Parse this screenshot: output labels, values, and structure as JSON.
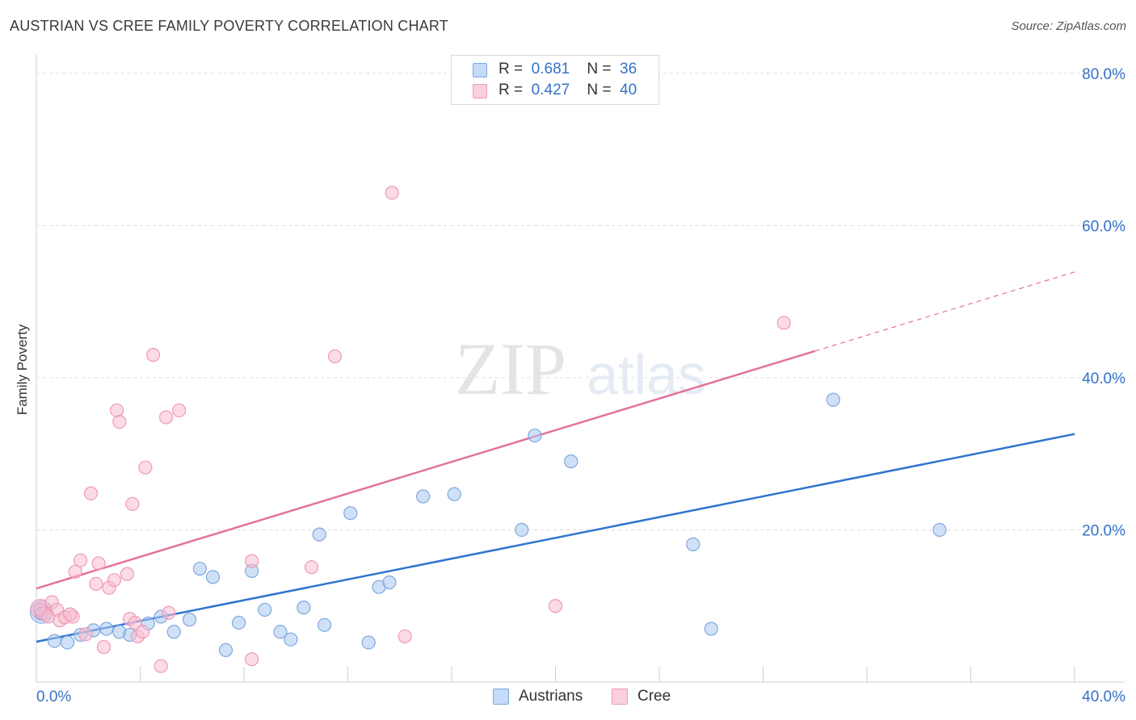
{
  "title": "AUSTRIAN VS CREE FAMILY POVERTY CORRELATION CHART",
  "source": "Source: ZipAtlas.com",
  "watermark": {
    "zip": "ZIP",
    "atlas": "atlas"
  },
  "legend": {
    "items": [
      {
        "r_label": "R =",
        "r_value": "0.681",
        "n_label": "N =",
        "n_value": "36"
      },
      {
        "r_label": "R =",
        "r_value": "0.427",
        "n_label": "N =",
        "n_value": "40"
      }
    ]
  },
  "bottom_legend": {
    "austrians": "Austrians",
    "cree": "Cree"
  },
  "colors": {
    "austrians_fill": "#a9c8f0",
    "austrians_stroke": "#7ea7de",
    "austrians_line": "#2f74d0",
    "cree_fill": "#f8bdd0",
    "cree_stroke": "#ee9ab6",
    "cree_line": "#e4729a",
    "axis_text": "#3472c8",
    "grid": "#dddddd"
  },
  "chart_data": {
    "type": "scatter",
    "title": "AUSTRIAN VS CREE FAMILY POVERTY CORRELATION CHART",
    "xlabel": "",
    "ylabel": "Family Poverty",
    "xlim": [
      0,
      40
    ],
    "ylim": [
      0,
      82
    ],
    "x_tick_labels": [
      "0.0%",
      "40.0%"
    ],
    "y_ticks": [
      20,
      40,
      60,
      80
    ],
    "y_tick_labels": [
      "20.0%",
      "40.0%",
      "60.0%",
      "80.0%"
    ],
    "grid": true,
    "legend_position": "top-center",
    "series": [
      {
        "name": "Austrians",
        "r": 0.681,
        "n": 36,
        "points": [
          [
            0.2,
            9.0
          ],
          [
            0.7,
            5.4
          ],
          [
            1.2,
            5.2
          ],
          [
            1.7,
            6.2
          ],
          [
            2.2,
            6.8
          ],
          [
            2.7,
            7.0
          ],
          [
            3.2,
            6.6
          ],
          [
            3.6,
            6.2
          ],
          [
            4.3,
            7.7
          ],
          [
            4.8,
            8.6
          ],
          [
            5.3,
            6.6
          ],
          [
            5.9,
            8.2
          ],
          [
            6.3,
            14.9
          ],
          [
            6.8,
            13.8
          ],
          [
            7.3,
            4.2
          ],
          [
            7.8,
            7.8
          ],
          [
            8.3,
            14.6
          ],
          [
            8.8,
            9.5
          ],
          [
            9.4,
            6.6
          ],
          [
            9.8,
            5.6
          ],
          [
            10.3,
            9.8
          ],
          [
            11.1,
            7.5
          ],
          [
            10.9,
            19.4
          ],
          [
            12.1,
            22.2
          ],
          [
            12.8,
            5.2
          ],
          [
            13.2,
            12.5
          ],
          [
            13.6,
            13.1
          ],
          [
            14.9,
            24.4
          ],
          [
            16.1,
            24.7
          ],
          [
            18.7,
            20.0
          ],
          [
            19.2,
            32.4
          ],
          [
            20.6,
            29.0
          ],
          [
            25.3,
            18.1
          ],
          [
            26.0,
            7.0
          ],
          [
            30.7,
            37.1
          ],
          [
            34.8,
            20.0
          ]
        ],
        "trend": {
          "x": [
            0,
            40
          ],
          "y": [
            5.3,
            32.6
          ]
        }
      },
      {
        "name": "Cree",
        "r": 0.427,
        "n": 40,
        "points": [
          [
            0.3,
            9.0
          ],
          [
            0.6,
            10.5
          ],
          [
            0.8,
            9.5
          ],
          [
            0.9,
            8.1
          ],
          [
            1.1,
            8.5
          ],
          [
            1.4,
            8.6
          ],
          [
            1.5,
            14.5
          ],
          [
            1.7,
            16.0
          ],
          [
            1.9,
            6.3
          ],
          [
            2.1,
            24.8
          ],
          [
            2.3,
            12.9
          ],
          [
            2.4,
            15.6
          ],
          [
            2.6,
            4.6
          ],
          [
            2.8,
            12.4
          ],
          [
            3.0,
            13.4
          ],
          [
            3.1,
            35.7
          ],
          [
            3.2,
            34.2
          ],
          [
            3.5,
            14.2
          ],
          [
            3.6,
            8.3
          ],
          [
            3.7,
            23.4
          ],
          [
            3.8,
            7.8
          ],
          [
            3.9,
            6.0
          ],
          [
            4.1,
            6.6
          ],
          [
            4.2,
            28.2
          ],
          [
            4.5,
            43.0
          ],
          [
            4.8,
            2.1
          ],
          [
            5.0,
            34.8
          ],
          [
            5.1,
            9.1
          ],
          [
            5.5,
            35.7
          ],
          [
            8.3,
            15.9
          ],
          [
            8.3,
            3.0
          ],
          [
            10.6,
            15.1
          ],
          [
            11.5,
            42.8
          ],
          [
            13.7,
            64.3
          ],
          [
            14.2,
            6.0
          ],
          [
            20.0,
            10.0
          ],
          [
            28.8,
            47.2
          ],
          [
            0.15,
            9.5
          ],
          [
            0.45,
            8.6
          ],
          [
            1.3,
            8.9
          ]
        ],
        "trend": {
          "x": [
            0,
            30
          ],
          "y": [
            12.3,
            43.5
          ]
        },
        "trend_extension": {
          "x": [
            30,
            40
          ],
          "y": [
            43.5,
            53.9
          ]
        }
      }
    ]
  }
}
